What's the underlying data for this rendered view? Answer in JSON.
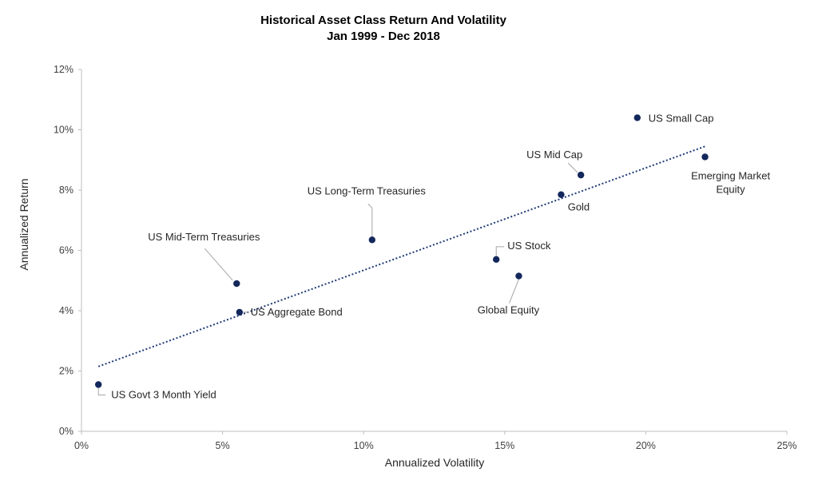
{
  "colors": {
    "marker": "#13275b",
    "trendline": "#1f3a78",
    "axis": "#bfbfbf"
  },
  "chart_data": {
    "type": "scatter",
    "title": "Historical Asset Class Return And Volatility",
    "subtitle": "Jan 1999 - Dec 2018",
    "xlabel": "Annualized Volatility",
    "ylabel": "Annualized Return",
    "xlim": [
      0,
      25
    ],
    "ylim": [
      0,
      12
    ],
    "x_ticks": [
      0,
      5,
      10,
      15,
      20,
      25
    ],
    "x_tick_labels": [
      "0%",
      "5%",
      "10%",
      "15%",
      "20%",
      "25%"
    ],
    "y_ticks": [
      0,
      2,
      4,
      6,
      8,
      10,
      12
    ],
    "y_tick_labels": [
      "0%",
      "2%",
      "4%",
      "6%",
      "8%",
      "10%",
      "12%"
    ],
    "grid": false,
    "legend": "none",
    "trendline": {
      "type": "linear",
      "style": "dotted",
      "x": [
        0.6,
        22.1
      ],
      "y": [
        2.15,
        9.45
      ]
    },
    "points": [
      {
        "label": "US Govt 3 Month Yield",
        "x": 0.6,
        "y": 1.55
      },
      {
        "label": "US Mid-Term Treasuries",
        "x": 5.5,
        "y": 4.9
      },
      {
        "label": "US Aggregate Bond",
        "x": 5.6,
        "y": 3.95
      },
      {
        "label": "US Long-Term Treasuries",
        "x": 10.3,
        "y": 6.35
      },
      {
        "label": "US Stock",
        "x": 14.7,
        "y": 5.7
      },
      {
        "label": "Global Equity",
        "x": 15.5,
        "y": 5.15
      },
      {
        "label": "Gold",
        "x": 17.0,
        "y": 7.85
      },
      {
        "label": "US Mid Cap",
        "x": 17.7,
        "y": 8.5
      },
      {
        "label": "US Small Cap",
        "x": 19.7,
        "y": 10.4
      },
      {
        "label": "Emerging Market Equity",
        "x": 22.1,
        "y": 9.1
      }
    ]
  }
}
